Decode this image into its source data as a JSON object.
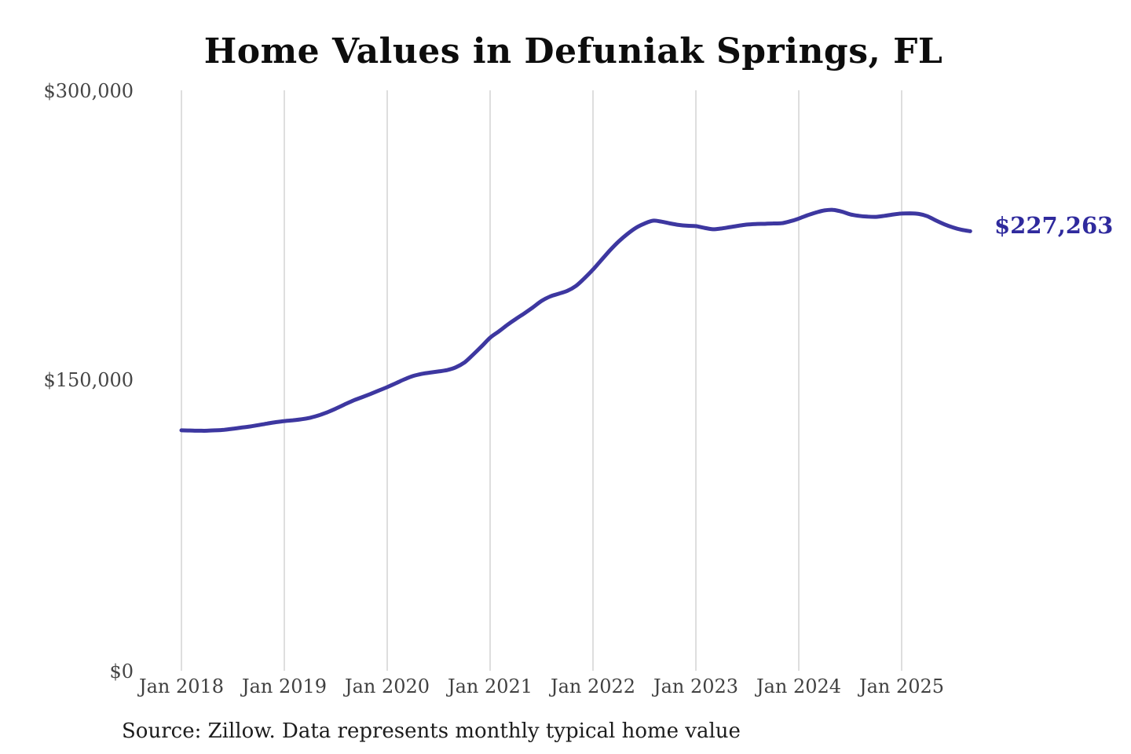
{
  "title": "Home Values in Defuniak Springs, FL",
  "footer": {
    "source_text": "Source: Zillow. Data represents monthly typical home value"
  },
  "chart_data": {
    "type": "line",
    "title": "Home Values in Defuniak Springs, FL",
    "series_name": "Monthly typical home value",
    "unit": "USD",
    "frequency": "monthly",
    "x_start": "Jan 2018",
    "x_end": "Sep 2025",
    "values": [
      124500,
      124400,
      124300,
      124300,
      124500,
      124800,
      125300,
      125900,
      126500,
      127200,
      128000,
      128700,
      129300,
      129700,
      130200,
      131000,
      132200,
      133800,
      135700,
      137800,
      139800,
      141500,
      143200,
      145000,
      146800,
      148800,
      150800,
      152500,
      153600,
      154300,
      154900,
      155600,
      157000,
      159500,
      163500,
      167800,
      172300,
      175500,
      178900,
      182000,
      184900,
      188000,
      191300,
      193600,
      195000,
      196500,
      199000,
      203000,
      207500,
      212500,
      217500,
      222000,
      225800,
      229000,
      231200,
      232700,
      232200,
      231300,
      230500,
      230100,
      229900,
      229000,
      228300,
      228700,
      229400,
      230100,
      230700,
      231000,
      231100,
      231300,
      231400,
      232400,
      233800,
      235500,
      236900,
      238000,
      238300,
      237400,
      236000,
      235200,
      234800,
      234700,
      235200,
      235900,
      236400,
      236500,
      236200,
      235000,
      232800,
      230800,
      229200,
      228000,
      227263
    ],
    "last_value": 227263,
    "end_label": "$227,263",
    "xtick_labels": [
      "Jan 2018",
      "Jan 2019",
      "Jan 2020",
      "Jan 2021",
      "Jan 2022",
      "Jan 2023",
      "Jan 2024",
      "Jan 2025"
    ],
    "ytick_labels": [
      "$0",
      "$150,000",
      "$300,000"
    ],
    "ylim": [
      0,
      300000
    ],
    "grid": "vertical-only",
    "legend": "none",
    "colors": {
      "line": "#3d37a0",
      "end_label": "#2f2a9d",
      "grid": "#c9c9c9",
      "axis_text": "#454545",
      "title_text": "#0d0d0d",
      "background": "#ffffff"
    }
  }
}
